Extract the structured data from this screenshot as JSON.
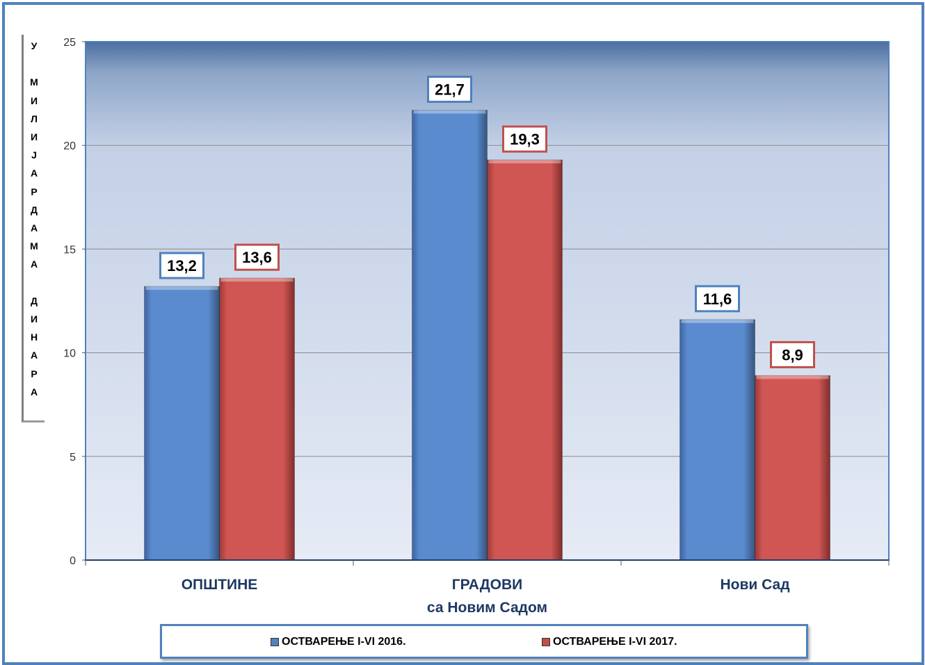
{
  "chart_data": {
    "type": "bar",
    "title": "",
    "ylabel": "У МИЛИЈАРДАМА ДИНАРА",
    "ylim": [
      0,
      25
    ],
    "yticks": [
      "0",
      "5",
      "10",
      "15",
      "20",
      "25"
    ],
    "categories": [
      [
        "ОПШТИНЕ"
      ],
      [
        "ГРАДОВИ",
        "са Новим Садом"
      ],
      [
        "Нови Сад"
      ]
    ],
    "series": [
      {
        "name": "ОСТВАРЕЊЕ I-VI 2016.",
        "values": [
          13.2,
          21.7,
          11.6
        ],
        "labels": [
          "13,2",
          "21,7",
          "11,6"
        ],
        "color": "#4f81bd"
      },
      {
        "name": "ОСТВАРЕЊЕ I-VI 2017.",
        "values": [
          13.6,
          19.3,
          8.9
        ],
        "labels": [
          "13,6",
          "19,3",
          "8,9"
        ],
        "color": "#c0504d"
      }
    ],
    "grid": true,
    "legend_position": "bottom"
  },
  "ylabel_chars": [
    "У",
    "",
    "М",
    "И",
    "Л",
    "И",
    "Ј",
    "А",
    "Р",
    "Д",
    "А",
    "М",
    "А",
    "",
    "Д",
    "И",
    "Н",
    "А",
    "Р",
    "А"
  ]
}
